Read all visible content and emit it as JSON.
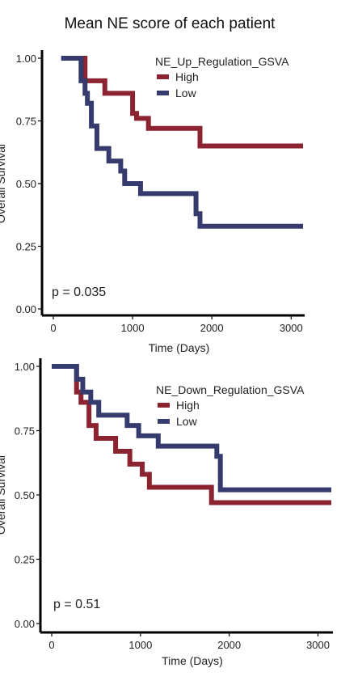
{
  "page": {
    "title": "Mean NE score of each patient"
  },
  "chart_data": [
    {
      "type": "line",
      "step": true,
      "legend_title": "NE_Up_Regulation_GSVA",
      "legend_position": "top-right",
      "xlabel": "Time (Days)",
      "ylabel": "Overall Survival",
      "xlim": [
        0,
        3150
      ],
      "ylim": [
        0,
        1
      ],
      "xticks": [
        0,
        1000,
        2000,
        3000
      ],
      "xtick_labels": [
        "0",
        "1000",
        "2000",
        "3000"
      ],
      "yticks": [
        0,
        0.25,
        0.5,
        0.75,
        1.0
      ],
      "ytick_labels": [
        "0.00",
        "0.25",
        "0.50",
        "0.75",
        "1.00"
      ],
      "pvalue": "p = 0.035",
      "series": [
        {
          "name": "High",
          "color": "#8b2331",
          "x": [
            100,
            350,
            400,
            650,
            1000,
            1050,
            1200,
            1850,
            3150
          ],
          "y": [
            1.0,
            1.0,
            0.91,
            0.86,
            0.78,
            0.76,
            0.72,
            0.65,
            0.65
          ]
        },
        {
          "name": "Low",
          "color": "#353b6c",
          "x": [
            100,
            350,
            400,
            430,
            480,
            550,
            700,
            850,
            900,
            1100,
            1800,
            1850,
            3150
          ],
          "y": [
            1.0,
            0.91,
            0.86,
            0.82,
            0.73,
            0.64,
            0.59,
            0.55,
            0.5,
            0.46,
            0.38,
            0.33,
            0.33
          ]
        }
      ]
    },
    {
      "type": "line",
      "step": true,
      "legend_title": "NE_Down_Regulation_GSVA",
      "legend_position": "top-right",
      "xlabel": "Time (Days)",
      "ylabel": "Overall Survival",
      "xlim": [
        0,
        3150
      ],
      "ylim": [
        0,
        1
      ],
      "xticks": [
        0,
        1000,
        2000,
        3000
      ],
      "xtick_labels": [
        "0",
        "1000",
        "2000",
        "3000"
      ],
      "yticks": [
        0,
        0.25,
        0.5,
        0.75,
        1.0
      ],
      "ytick_labels": [
        "0.00",
        "0.25",
        "0.50",
        "0.75",
        "1.00"
      ],
      "pvalue": "p = 0.51",
      "series": [
        {
          "name": "High",
          "color": "#8b2331",
          "x": [
            0,
            280,
            330,
            420,
            500,
            720,
            880,
            1020,
            1100,
            1800,
            3150
          ],
          "y": [
            1.0,
            0.9,
            0.86,
            0.77,
            0.72,
            0.67,
            0.62,
            0.58,
            0.53,
            0.47,
            0.47
          ]
        },
        {
          "name": "Low",
          "color": "#353b6c",
          "x": [
            0,
            280,
            350,
            440,
            530,
            850,
            980,
            1200,
            1860,
            1900,
            3150
          ],
          "y": [
            1.0,
            0.95,
            0.9,
            0.86,
            0.81,
            0.77,
            0.73,
            0.69,
            0.65,
            0.52,
            0.52
          ]
        }
      ]
    }
  ]
}
